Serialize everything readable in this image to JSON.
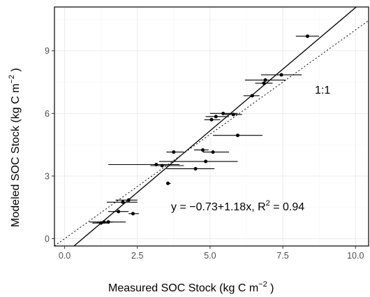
{
  "chart_data": {
    "type": "scatter",
    "xlabel_main": "Measured SOC Stock (kg C  m",
    "xlabel_sup": "−2",
    "xlabel_end": " )",
    "ylabel_main": "Modeled SOC Stock (kg C  m",
    "ylabel_sup": "−2",
    "ylabel_end": " )",
    "xlim": [
      -0.35,
      10.45
    ],
    "ylim": [
      -0.35,
      11.1
    ],
    "x_ticks": [
      0,
      2.5,
      5,
      7.5,
      10
    ],
    "x_tick_labels": [
      "0.0",
      "2.5",
      "5.0",
      "7.5",
      "10.0"
    ],
    "y_ticks": [
      0,
      3,
      6,
      9
    ],
    "y_tick_labels": [
      "0",
      "3",
      "6",
      "9"
    ],
    "grid": true,
    "points": [
      {
        "x": 1.25,
        "xerr": [
          0.95,
          1.55
        ],
        "y": 0.75
      },
      {
        "x": 1.35,
        "xerr": [
          1.1,
          1.65
        ],
        "y": 0.8
      },
      {
        "x": 1.5,
        "xerr": [
          0.85,
          2.1
        ],
        "y": 0.8
      },
      {
        "x": 1.85,
        "xerr": [
          1.5,
          2.2
        ],
        "y": 1.3
      },
      {
        "x": 2.35,
        "xerr": [
          2.2,
          2.55
        ],
        "y": 1.2
      },
      {
        "x": 2.0,
        "xerr": [
          1.45,
          2.5
        ],
        "y": 1.75
      },
      {
        "x": 2.2,
        "xerr": [
          1.75,
          2.5
        ],
        "y": 1.85
      },
      {
        "x": 3.55,
        "xerr": [
          3.5,
          3.65
        ],
        "y": 2.65
      },
      {
        "x": 3.35,
        "xerr": [
          2.95,
          4.1
        ],
        "y": 3.5
      },
      {
        "x": 3.15,
        "xerr": [
          1.5,
          3.95
        ],
        "y": 3.55
      },
      {
        "x": 4.5,
        "xerr": [
          3.5,
          5.15
        ],
        "y": 3.35
      },
      {
        "x": 4.85,
        "xerr": [
          3.25,
          5.95
        ],
        "y": 3.7
      },
      {
        "x": 3.75,
        "xerr": [
          3.5,
          4.1
        ],
        "y": 4.15
      },
      {
        "x": 4.75,
        "xerr": [
          4.45,
          4.95
        ],
        "y": 4.25
      },
      {
        "x": 5.1,
        "xerr": [
          4.75,
          5.65
        ],
        "y": 4.15
      },
      {
        "x": 5.95,
        "xerr": [
          5.1,
          6.8
        ],
        "y": 4.95
      },
      {
        "x": 5.05,
        "xerr": [
          4.8,
          5.35
        ],
        "y": 5.7
      },
      {
        "x": 5.2,
        "xerr": [
          4.85,
          5.65
        ],
        "y": 5.85
      },
      {
        "x": 5.45,
        "xerr": [
          5.0,
          5.95
        ],
        "y": 6.0
      },
      {
        "x": 5.8,
        "xerr": [
          5.5,
          6.1
        ],
        "y": 5.95
      },
      {
        "x": 6.45,
        "xerr": [
          6.15,
          6.7
        ],
        "y": 6.85
      },
      {
        "x": 6.85,
        "xerr": [
          6.55,
          7.15
        ],
        "y": 7.45
      },
      {
        "x": 6.9,
        "xerr": [
          6.2,
          7.6
        ],
        "y": 7.6
      },
      {
        "x": 7.45,
        "xerr": [
          6.75,
          8.15
        ],
        "y": 7.85
      },
      {
        "x": 8.35,
        "xerr": [
          7.95,
          8.75
        ],
        "y": 9.7
      }
    ],
    "regression": {
      "intercept": -0.73,
      "slope": 1.18
    },
    "one_to_one_label": "1:1",
    "equation_main": "y = −0.73+1.18x, R",
    "equation_sup": "2",
    "equation_end": " = 0.94",
    "colors": {
      "points": "#000000",
      "grid": "#e8e8e8",
      "frame": "#000000"
    }
  }
}
